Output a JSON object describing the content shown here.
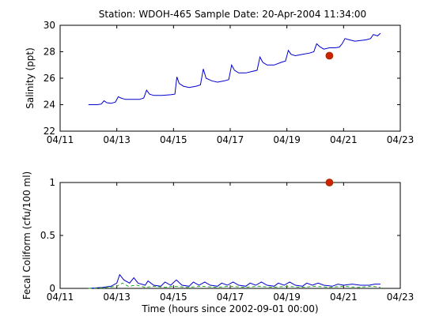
{
  "title": "Station: WDOH-465  Sample Date: 20-Apr-2004 11:34:00",
  "chart_data": [
    {
      "type": "line",
      "ylabel": "Salinity (ppt)",
      "xlabel": "",
      "xlim": [
        0,
        12
      ],
      "ylim": [
        22,
        30
      ],
      "xticks": [
        {
          "x": 0,
          "label": "04/11"
        },
        {
          "x": 2,
          "label": "04/13"
        },
        {
          "x": 4,
          "label": "04/15"
        },
        {
          "x": 6,
          "label": "04/17"
        },
        {
          "x": 8,
          "label": "04/19"
        },
        {
          "x": 10,
          "label": "04/21"
        },
        {
          "x": 12,
          "label": "04/23"
        }
      ],
      "yticks": [
        22,
        24,
        26,
        28,
        30
      ],
      "series": [
        {
          "kind": "line",
          "color": "#0000cc",
          "points": [
            [
              1.0,
              24.0
            ],
            [
              1.3,
              24.0
            ],
            [
              1.45,
              24.05
            ],
            [
              1.55,
              24.3
            ],
            [
              1.65,
              24.15
            ],
            [
              1.8,
              24.1
            ],
            [
              1.95,
              24.2
            ],
            [
              2.05,
              24.6
            ],
            [
              2.15,
              24.5
            ],
            [
              2.3,
              24.4
            ],
            [
              2.5,
              24.4
            ],
            [
              2.8,
              24.4
            ],
            [
              2.95,
              24.5
            ],
            [
              3.05,
              25.1
            ],
            [
              3.15,
              24.8
            ],
            [
              3.3,
              24.7
            ],
            [
              3.6,
              24.7
            ],
            [
              3.9,
              24.75
            ],
            [
              4.05,
              24.8
            ],
            [
              4.12,
              26.1
            ],
            [
              4.2,
              25.6
            ],
            [
              4.35,
              25.4
            ],
            [
              4.55,
              25.3
            ],
            [
              4.8,
              25.4
            ],
            [
              4.95,
              25.5
            ],
            [
              5.05,
              26.7
            ],
            [
              5.15,
              26.0
            ],
            [
              5.35,
              25.8
            ],
            [
              5.55,
              25.7
            ],
            [
              5.8,
              25.8
            ],
            [
              5.95,
              25.9
            ],
            [
              6.05,
              27.0
            ],
            [
              6.15,
              26.6
            ],
            [
              6.3,
              26.4
            ],
            [
              6.55,
              26.4
            ],
            [
              6.75,
              26.5
            ],
            [
              6.95,
              26.6
            ],
            [
              7.05,
              27.6
            ],
            [
              7.15,
              27.2
            ],
            [
              7.3,
              27.0
            ],
            [
              7.55,
              27.0
            ],
            [
              7.8,
              27.2
            ],
            [
              7.95,
              27.3
            ],
            [
              8.05,
              28.1
            ],
            [
              8.15,
              27.8
            ],
            [
              8.3,
              27.7
            ],
            [
              8.55,
              27.8
            ],
            [
              8.8,
              27.9
            ],
            [
              8.95,
              28.0
            ],
            [
              9.05,
              28.6
            ],
            [
              9.15,
              28.4
            ],
            [
              9.3,
              28.2
            ],
            [
              9.5,
              28.3
            ],
            [
              9.7,
              28.3
            ],
            [
              9.85,
              28.35
            ],
            [
              9.95,
              28.6
            ],
            [
              10.05,
              29.0
            ],
            [
              10.2,
              28.9
            ],
            [
              10.4,
              28.8
            ],
            [
              10.6,
              28.85
            ],
            [
              10.8,
              28.9
            ],
            [
              10.95,
              29.0
            ],
            [
              11.05,
              29.3
            ],
            [
              11.2,
              29.2
            ],
            [
              11.3,
              29.4
            ]
          ]
        },
        {
          "kind": "marker",
          "color": "#cc2200",
          "points": [
            [
              9.5,
              27.7
            ]
          ]
        }
      ]
    },
    {
      "type": "line",
      "ylabel": "Fecal Coliform (cfu/100 ml)",
      "xlabel": "Time (hours since 2002-09-01 00:00)",
      "xlim": [
        0,
        12
      ],
      "ylim": [
        0,
        1
      ],
      "xticks": [
        {
          "x": 0,
          "label": "04/11"
        },
        {
          "x": 2,
          "label": "04/13"
        },
        {
          "x": 4,
          "label": "04/15"
        },
        {
          "x": 6,
          "label": "04/17"
        },
        {
          "x": 8,
          "label": "04/19"
        },
        {
          "x": 10,
          "label": "04/21"
        },
        {
          "x": 12,
          "label": "04/23"
        }
      ],
      "yticks": [
        0,
        0.5,
        1
      ],
      "ytick_labels": [
        "0",
        "0.5",
        "1"
      ],
      "series": [
        {
          "kind": "line",
          "color": "#0000cc",
          "points": [
            [
              1.0,
              0.0
            ],
            [
              1.5,
              0.01
            ],
            [
              1.8,
              0.02
            ],
            [
              2.0,
              0.05
            ],
            [
              2.1,
              0.13
            ],
            [
              2.25,
              0.08
            ],
            [
              2.45,
              0.05
            ],
            [
              2.6,
              0.1
            ],
            [
              2.75,
              0.05
            ],
            [
              3.0,
              0.03
            ],
            [
              3.1,
              0.07
            ],
            [
              3.3,
              0.03
            ],
            [
              3.55,
              0.02
            ],
            [
              3.7,
              0.06
            ],
            [
              3.9,
              0.03
            ],
            [
              4.1,
              0.08
            ],
            [
              4.3,
              0.03
            ],
            [
              4.55,
              0.02
            ],
            [
              4.7,
              0.06
            ],
            [
              4.9,
              0.03
            ],
            [
              5.1,
              0.06
            ],
            [
              5.3,
              0.03
            ],
            [
              5.55,
              0.02
            ],
            [
              5.7,
              0.05
            ],
            [
              5.9,
              0.03
            ],
            [
              6.1,
              0.06
            ],
            [
              6.3,
              0.03
            ],
            [
              6.55,
              0.02
            ],
            [
              6.7,
              0.05
            ],
            [
              6.9,
              0.03
            ],
            [
              7.1,
              0.06
            ],
            [
              7.3,
              0.03
            ],
            [
              7.55,
              0.02
            ],
            [
              7.7,
              0.05
            ],
            [
              7.9,
              0.03
            ],
            [
              8.1,
              0.06
            ],
            [
              8.3,
              0.03
            ],
            [
              8.55,
              0.02
            ],
            [
              8.7,
              0.05
            ],
            [
              8.9,
              0.03
            ],
            [
              9.1,
              0.05
            ],
            [
              9.3,
              0.03
            ],
            [
              9.6,
              0.02
            ],
            [
              9.8,
              0.04
            ],
            [
              10.0,
              0.03
            ],
            [
              10.3,
              0.04
            ],
            [
              10.6,
              0.03
            ],
            [
              10.9,
              0.03
            ],
            [
              11.1,
              0.04
            ],
            [
              11.3,
              0.04
            ]
          ]
        },
        {
          "kind": "dashed",
          "color": "#22aa22",
          "points": [
            [
              1.0,
              0.0
            ],
            [
              1.5,
              0.005
            ],
            [
              2.0,
              0.02
            ],
            [
              2.2,
              0.05
            ],
            [
              2.4,
              0.02
            ],
            [
              2.7,
              0.03
            ],
            [
              3.0,
              0.01
            ],
            [
              3.3,
              0.02
            ],
            [
              3.7,
              0.01
            ],
            [
              4.0,
              0.02
            ],
            [
              4.5,
              0.01
            ],
            [
              5.0,
              0.02
            ],
            [
              5.5,
              0.01
            ],
            [
              6.0,
              0.02
            ],
            [
              6.5,
              0.01
            ],
            [
              7.0,
              0.02
            ],
            [
              7.5,
              0.01
            ],
            [
              8.0,
              0.02
            ],
            [
              8.5,
              0.01
            ],
            [
              9.0,
              0.02
            ],
            [
              9.5,
              0.01
            ],
            [
              10.0,
              0.02
            ],
            [
              10.5,
              0.01
            ],
            [
              11.0,
              0.02
            ],
            [
              11.3,
              0.01
            ]
          ]
        },
        {
          "kind": "marker",
          "color": "#cc2200",
          "points": [
            [
              9.5,
              1.0
            ]
          ]
        }
      ]
    }
  ]
}
